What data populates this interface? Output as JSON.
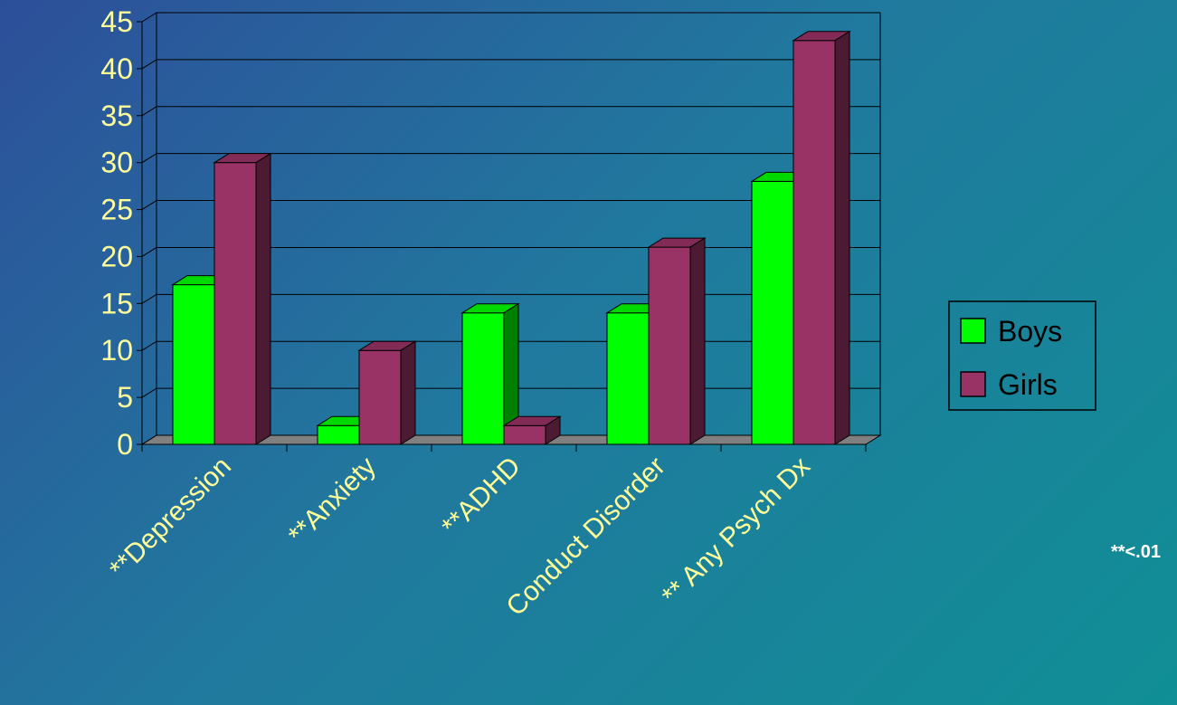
{
  "chart_data": {
    "type": "bar",
    "categories": [
      "**Depression",
      "**Anxiety",
      "**ADHD",
      "Conduct Disorder",
      "** Any Psych Dx"
    ],
    "series": [
      {
        "name": "Boys",
        "values": [
          17,
          2,
          14,
          14,
          28
        ],
        "color": "#00ff00"
      },
      {
        "name": "Girls",
        "values": [
          30,
          10,
          2,
          21,
          43
        ],
        "color": "#993366"
      }
    ],
    "ylim": [
      0,
      45
    ],
    "yticks": [
      0,
      5,
      10,
      15,
      20,
      25,
      30,
      35,
      40,
      45
    ],
    "grid": true,
    "legend_position": "right",
    "three_d": true,
    "title": "",
    "xlabel": "",
    "ylabel": ""
  },
  "annotation": "**<.01",
  "colors": {
    "tick_text": "#ffff99",
    "floor": "#808080",
    "gridline": "#000000"
  }
}
